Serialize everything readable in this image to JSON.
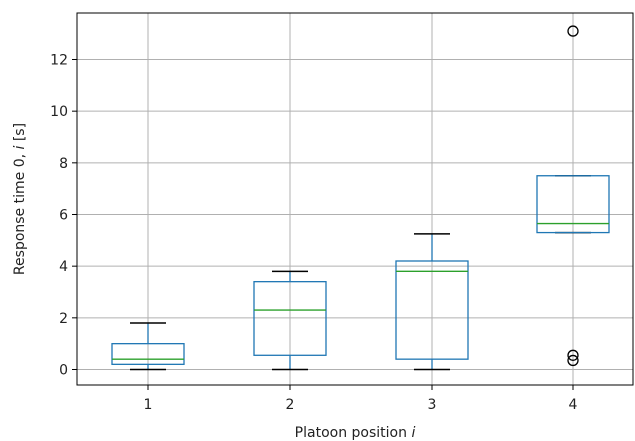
{
  "chart_data": {
    "type": "box",
    "categories": [
      "1",
      "2",
      "3",
      "4"
    ],
    "xlabel_text": "Platoon position ",
    "xlabel_var": "i",
    "ylabel_text": "Response time 0, ",
    "ylabel_var": "i",
    "ylabel_unit": " [s]",
    "ylim": [
      -0.6,
      13.8
    ],
    "yticks": [
      0,
      2,
      4,
      6,
      8,
      10,
      12
    ],
    "grid": true,
    "boxes": [
      {
        "category": "1",
        "whisker_low": 0.0,
        "q1": 0.2,
        "median": 0.4,
        "q3": 1.0,
        "whisker_high": 1.8,
        "outliers": []
      },
      {
        "category": "2",
        "whisker_low": 0.0,
        "q1": 0.55,
        "median": 2.3,
        "q3": 3.4,
        "whisker_high": 3.8,
        "outliers": []
      },
      {
        "category": "3",
        "whisker_low": 0.0,
        "q1": 0.4,
        "median": 3.8,
        "q3": 4.2,
        "whisker_high": 5.25,
        "outliers": []
      },
      {
        "category": "4",
        "whisker_low": 5.3,
        "q1": 5.3,
        "median": 5.65,
        "q3": 7.5,
        "whisker_high": 7.5,
        "outliers": [
          13.1,
          0.55,
          0.35
        ]
      }
    ],
    "colors": {
      "box": "#1f77b4",
      "median": "#2ca02c",
      "whisker": "#000000",
      "grid": "#b0b0b0"
    }
  }
}
